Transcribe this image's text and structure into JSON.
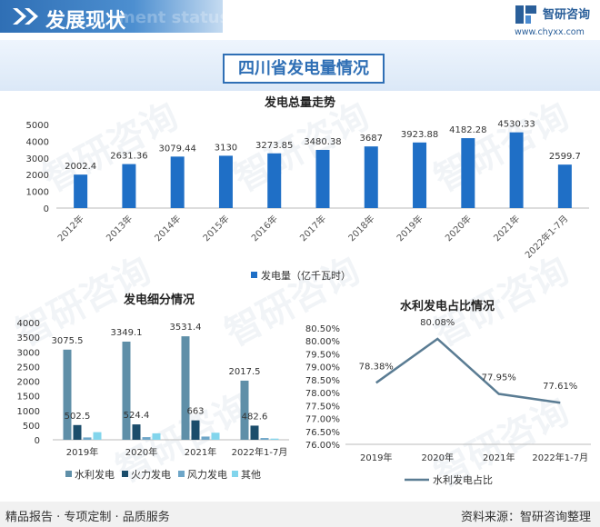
{
  "header": {
    "title": "发展现状",
    "watermark": "ment status",
    "brand_name": "智研咨询",
    "brand_url": "www.chyxx.com"
  },
  "main_title": "四川省发电量情况",
  "watermark_text": "智研咨询",
  "footer": {
    "left": "精品报告 · 专项定制 · 品质服务",
    "source": "资料来源：智研咨询整理"
  },
  "colors": {
    "accent": "#2f6fb5",
    "bar_total": "#1f6fc6",
    "hydro": "#5f8fa8",
    "thermal": "#1b4d6b",
    "wind": "#6ea6c8",
    "other": "#82d5ec",
    "line": "#5a7c93"
  },
  "chart_data": [
    {
      "type": "bar",
      "title": "发电总量走势",
      "categories": [
        "2012年",
        "2013年",
        "2014年",
        "2015年",
        "2016年",
        "2017年",
        "2018年",
        "2019年",
        "2020年",
        "2021年",
        "2022年1-7月"
      ],
      "series": [
        {
          "name": "发电量（亿千瓦时）",
          "values": [
            2002.4,
            2631.36,
            3079.44,
            3130,
            3273.85,
            3480.38,
            3687,
            3923.88,
            4182.28,
            4530.33,
            2599.7
          ]
        }
      ],
      "value_labels": [
        "2002.4",
        "2631.36",
        "3079.44",
        "3130",
        "3273.85",
        "3480.38",
        "3687",
        "3923.88",
        "4182.28",
        "4530.33",
        "2599.7"
      ],
      "yticks": [
        "0",
        "1000",
        "2000",
        "3000",
        "4000",
        "5000"
      ],
      "ylim": [
        0,
        5000
      ],
      "legend_position": "bottom"
    },
    {
      "type": "bar",
      "title": "发电细分情况",
      "categories": [
        "2019年",
        "2020年",
        "2021年",
        "2022年1-7月"
      ],
      "series": [
        {
          "name": "水利发电",
          "values": [
            3075.5,
            3349.1,
            3531.4,
            2017.5
          ]
        },
        {
          "name": "火力发电",
          "values": [
            502.5,
            524.4,
            663,
            482.6
          ]
        },
        {
          "name": "风力发电",
          "values": [
            80,
            90,
            110,
            60
          ]
        },
        {
          "name": "其他",
          "values": [
            260,
            220,
            240,
            40
          ]
        }
      ],
      "labeled_values": [
        [
          "3075.5",
          "3349.1",
          "3531.4",
          "2017.5"
        ],
        [
          "502.5",
          "524.4",
          "663",
          "482.6"
        ]
      ],
      "yticks": [
        "0",
        "500",
        "1000",
        "1500",
        "2000",
        "2500",
        "3000",
        "3500",
        "4000"
      ],
      "ylim": [
        0,
        4000
      ],
      "legend_position": "bottom"
    },
    {
      "type": "line",
      "title": "水利发电占比情况",
      "categories": [
        "2019年",
        "2020年",
        "2021年",
        "2022年1-7月"
      ],
      "series": [
        {
          "name": "水利发电占比",
          "values": [
            78.38,
            80.08,
            77.95,
            77.61
          ]
        }
      ],
      "value_labels": [
        "78.38%",
        "80.08%",
        "77.95%",
        "77.61%"
      ],
      "yticks": [
        "76.00%",
        "76.50%",
        "77.00%",
        "77.50%",
        "78.00%",
        "78.50%",
        "79.00%",
        "79.50%",
        "80.00%",
        "80.50%"
      ],
      "ylim": [
        76,
        80.5
      ],
      "legend_position": "bottom"
    }
  ]
}
